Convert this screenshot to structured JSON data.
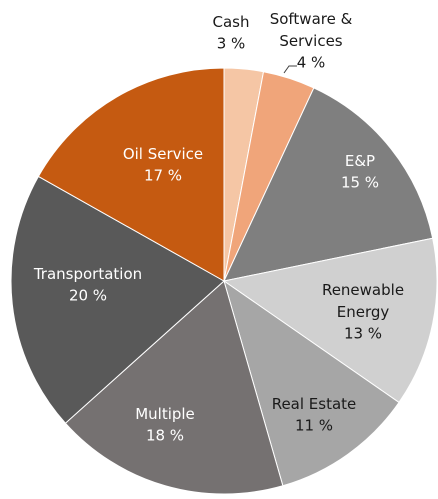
{
  "chart_data": {
    "type": "pie",
    "categories": [
      "Cash",
      "Software & Services",
      "E&P",
      "Renewable Energy",
      "Real Estate",
      "Multiple",
      "Transportation",
      "Oil Service"
    ],
    "values": [
      3,
      4,
      15,
      13,
      11,
      18,
      20,
      17
    ],
    "value_labels": [
      "3 %",
      "4 %",
      "15 %",
      "13 %",
      "11 %",
      "18 %",
      "20 %",
      "17 %"
    ],
    "colors": [
      "#f5c6a5",
      "#f0a57a",
      "#7f7f7f",
      "#d0d0d0",
      "#a6a6a6",
      "#757171",
      "#595959",
      "#c55a11"
    ]
  }
}
